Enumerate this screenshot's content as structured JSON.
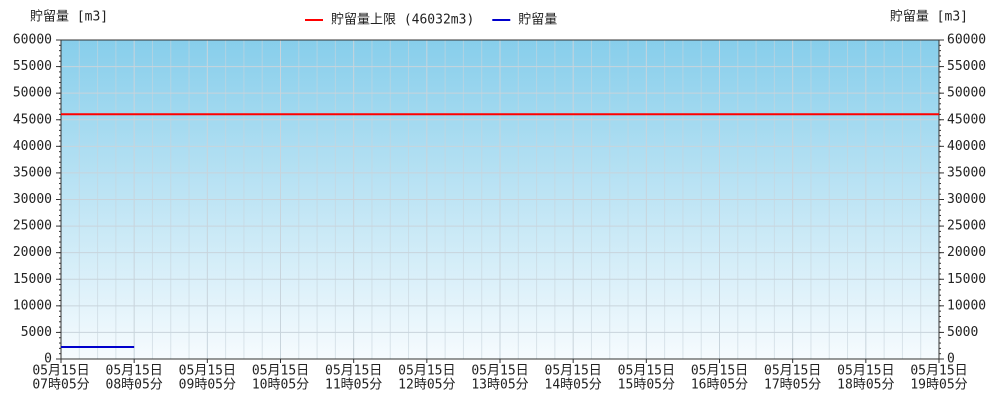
{
  "chart_data": {
    "type": "line",
    "y_label": "貯留量 [m3]",
    "y2_label": "貯留量 [m3]",
    "x": [
      {
        "date": "05月15日",
        "time": "07時05分"
      },
      {
        "date": "05月15日",
        "time": "08時05分"
      },
      {
        "date": "05月15日",
        "time": "09時05分"
      },
      {
        "date": "05月15日",
        "time": "10時05分"
      },
      {
        "date": "05月15日",
        "time": "11時05分"
      },
      {
        "date": "05月15日",
        "time": "12時05分"
      },
      {
        "date": "05月15日",
        "time": "13時05分"
      },
      {
        "date": "05月15日",
        "time": "14時05分"
      },
      {
        "date": "05月15日",
        "time": "15時05分"
      },
      {
        "date": "05月15日",
        "time": "16時05分"
      },
      {
        "date": "05月15日",
        "time": "17時05分"
      },
      {
        "date": "05月15日",
        "time": "18時05分"
      },
      {
        "date": "05月15日",
        "time": "19時05分"
      }
    ],
    "series": [
      {
        "name": "貯留量上限 (46032m3)",
        "color": "#ff0000",
        "values": [
          46032,
          46032,
          46032,
          46032,
          46032,
          46032,
          46032,
          46032,
          46032,
          46032,
          46032,
          46032,
          46032
        ]
      },
      {
        "name": "貯留量",
        "color": "#0000cc",
        "values": [
          2250,
          2250,
          null,
          null,
          null,
          null,
          null,
          null,
          null,
          null,
          null,
          null,
          null
        ]
      }
    ],
    "ylim": [
      0,
      60000
    ],
    "yticks": [
      0,
      5000,
      10000,
      15000,
      20000,
      25000,
      30000,
      35000,
      40000,
      45000,
      50000,
      55000,
      60000
    ],
    "y2lim": [
      0,
      60000
    ],
    "y2ticks": [
      0,
      5000,
      10000,
      15000,
      20000,
      25000,
      30000,
      35000,
      40000,
      45000,
      50000,
      55000,
      60000
    ],
    "grid": true
  }
}
